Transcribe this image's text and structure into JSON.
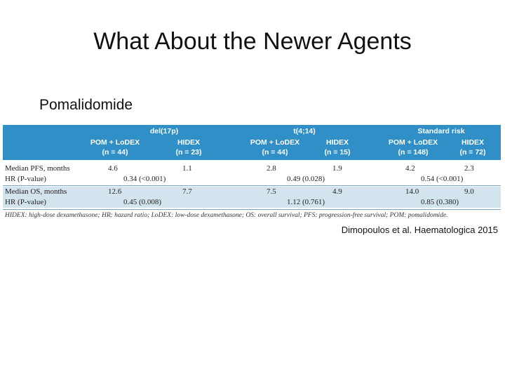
{
  "slide": {
    "title": "What About the Newer Agents",
    "section": "Pomalidomide",
    "citation": "Dimopoulos et al. Haematologica 2015"
  },
  "table": {
    "groups": [
      {
        "name": "del(17p)",
        "arm1": "POM + LoDEX",
        "arm1_n": "(n = 44)",
        "arm2": "HIDEX",
        "arm2_n": "(n = 23)"
      },
      {
        "name": "t(4;14)",
        "arm1": "POM + LoDEX",
        "arm1_n": "(n = 44)",
        "arm2": "HIDEX",
        "arm2_n": "(n = 15)"
      },
      {
        "name": "Standard risk",
        "arm1": "POM + LoDEX",
        "arm1_n": "(n = 148)",
        "arm2": "HIDEX",
        "arm2_n": "(n = 72)"
      }
    ],
    "rows": [
      {
        "label": "Median PFS, months",
        "v": [
          "4.6",
          "1.1",
          "2.8",
          "1.9",
          "4.2",
          "2.3"
        ]
      },
      {
        "label": "HR (P-value)",
        "hr": [
          "0.34 (<0.001)",
          "0.49 (0.028)",
          "0.54 (<0.001)"
        ]
      },
      {
        "label": "Median OS, months",
        "v": [
          "12.6",
          "7.7",
          "7.5",
          "4.9",
          "14.0",
          "9.0"
        ]
      },
      {
        "label": "HR (P-value)",
        "hr": [
          "0.45 (0.008)",
          "1.12 (0.761)",
          "0.85 (0.380)"
        ]
      }
    ],
    "footnote": "HIDEX: high-dose dexamethasone; HR: hazard ratio; LoDEX: low-dose dexamethasone; OS: overall survival; PFS: progression-free survival; POM: pomalidomide."
  },
  "colors": {
    "header_bg": "#2f8fc6",
    "shaded_row_bg": "#d3e4ef"
  }
}
